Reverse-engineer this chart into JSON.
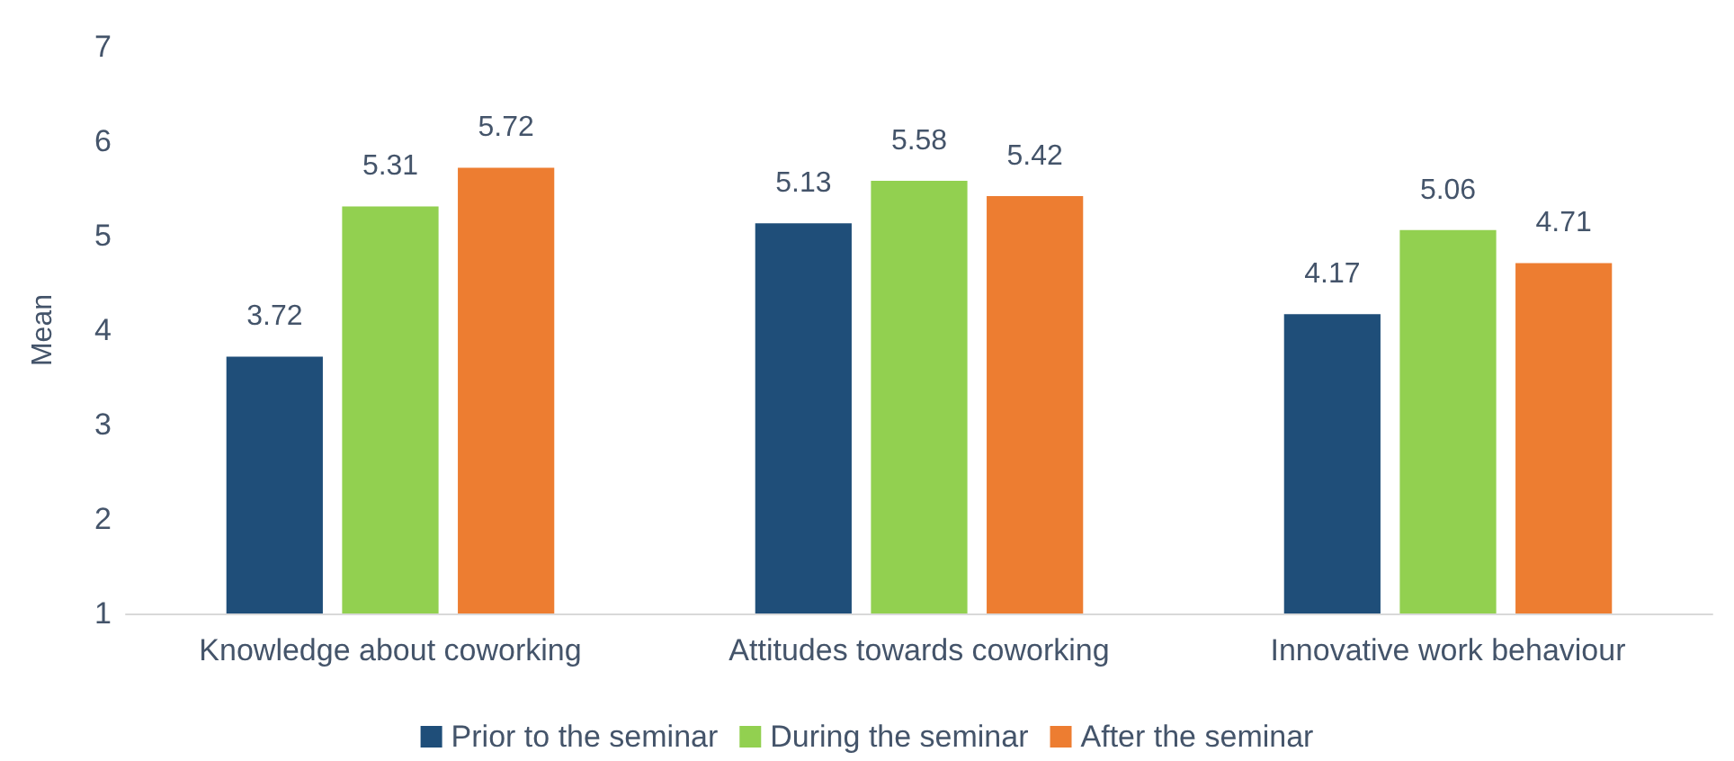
{
  "chart_data": {
    "type": "bar",
    "ylabel": "Mean",
    "categories": [
      "Knowledge about coworking",
      "Attitudes towards coworking",
      "Innovative work behaviour"
    ],
    "series": [
      {
        "name": "Prior to the seminar",
        "color": "#1f4e79",
        "values": [
          3.72,
          5.13,
          4.17
        ]
      },
      {
        "name": "During the seminar",
        "color": "#92d050",
        "values": [
          5.31,
          5.58,
          5.06
        ]
      },
      {
        "name": "After the seminar",
        "color": "#ed7d31",
        "values": [
          5.72,
          5.42,
          4.71
        ]
      }
    ],
    "ylim": [
      1,
      7
    ],
    "yticks": [
      1,
      2,
      3,
      4,
      5,
      6,
      7
    ],
    "grid": false,
    "legend": "bottom",
    "data_labels": true
  }
}
